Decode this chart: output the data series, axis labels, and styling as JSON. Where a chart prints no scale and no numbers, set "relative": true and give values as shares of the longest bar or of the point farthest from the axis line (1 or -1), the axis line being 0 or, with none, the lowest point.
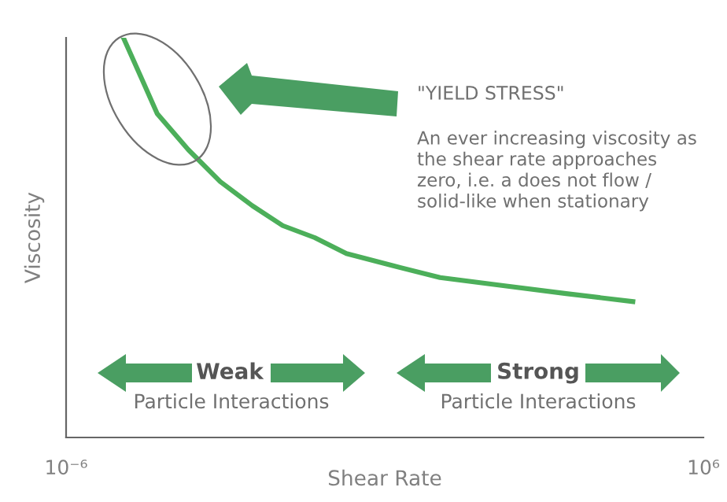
{
  "chart_data": {
    "type": "line",
    "xlabel": "Shear Rate",
    "ylabel": "Viscosity",
    "relative": true,
    "log": "x",
    "xlim": [
      1e-06,
      1000000.0
    ],
    "xticks": [
      {
        "value": 1e-06,
        "label": "10⁻⁶"
      },
      {
        "value": 1000000.0,
        "label": "10⁶"
      }
    ],
    "x": [
      1.2e-05,
      2.6e-05,
      5.2e-05,
      0.0002,
      0.0008,
      0.0032,
      0.012,
      0.048,
      0.19,
      1.4,
      11,
      170,
      2600,
      47000
    ],
    "series": [
      {
        "color": "#4caf5a",
        "values": [
          1.0,
          0.9,
          0.81,
          0.72,
          0.64,
          0.58,
          0.53,
          0.5,
          0.46,
          0.43,
          0.4,
          0.38,
          0.36,
          0.34
        ]
      }
    ],
    "annotations": [
      "\"YIELD STRESS\"",
      "An ever increasing viscosity as\nthe shear rate approaches\nzero, i.e. a does not flow /\nsolid-like when stationary",
      "Weak",
      "Particle Interactions",
      "Strong",
      "Particle Interactions"
    ]
  }
}
